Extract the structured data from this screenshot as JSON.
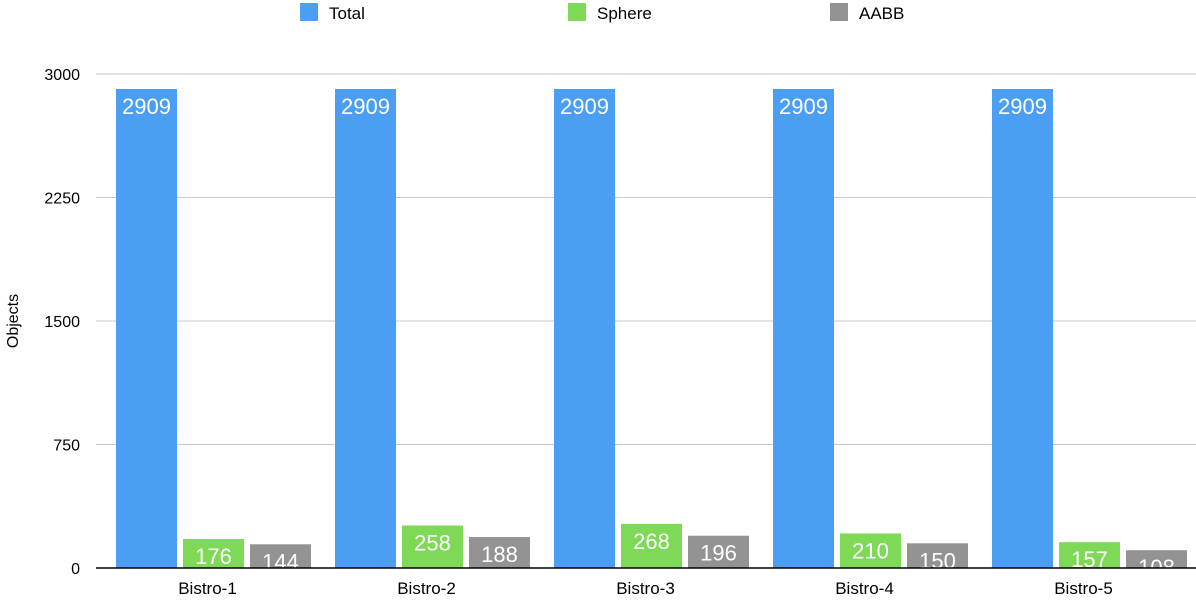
{
  "chart_data": {
    "type": "bar",
    "title": "",
    "xlabel": "",
    "ylabel": "Objects",
    "ylim": [
      0,
      3000
    ],
    "yticks": [
      0,
      750,
      1500,
      2250,
      3000
    ],
    "grid": true,
    "legend_position": "top",
    "categories": [
      "Bistro-1",
      "Bistro-2",
      "Bistro-3",
      "Bistro-4",
      "Bistro-5"
    ],
    "series": [
      {
        "name": "Total",
        "color": "#4a9ff5",
        "values": [
          2909,
          2909,
          2909,
          2909,
          2909
        ]
      },
      {
        "name": "Sphere",
        "color": "#7ed957",
        "values": [
          176,
          258,
          268,
          210,
          157
        ]
      },
      {
        "name": "AABB",
        "color": "#939393",
        "values": [
          144,
          188,
          196,
          150,
          108
        ]
      }
    ],
    "data_labels": true
  }
}
